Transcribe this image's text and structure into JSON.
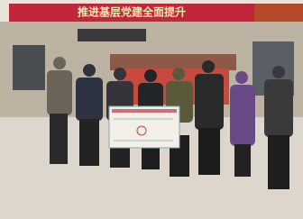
{
  "banner": {
    "text": "推进基层党建全面提升"
  }
}
